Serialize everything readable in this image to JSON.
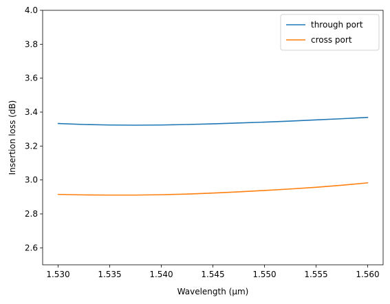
{
  "chart_data": {
    "type": "line",
    "xlabel": "Wavelength (μm)",
    "ylabel": "Insertion loss (dB)",
    "xlim": [
      1.5285,
      1.5615
    ],
    "ylim": [
      2.5,
      4.0
    ],
    "xticks": [
      1.53,
      1.535,
      1.54,
      1.545,
      1.55,
      1.555,
      1.56
    ],
    "xtick_labels": [
      "1.530",
      "1.535",
      "1.540",
      "1.545",
      "1.550",
      "1.555",
      "1.560"
    ],
    "yticks": [
      2.6,
      2.8,
      3.0,
      3.2,
      3.4,
      3.6,
      3.8,
      4.0
    ],
    "ytick_labels": [
      "2.6",
      "2.8",
      "3.0",
      "3.2",
      "3.4",
      "3.6",
      "3.8",
      "4.0"
    ],
    "grid": false,
    "legend_position": "top-right",
    "series": [
      {
        "name": "through port",
        "color": "#1f77b4",
        "x": [
          1.53,
          1.5325,
          1.535,
          1.5375,
          1.54,
          1.5425,
          1.545,
          1.5475,
          1.55,
          1.5525,
          1.555,
          1.5575,
          1.56
        ],
        "y": [
          3.333,
          3.327,
          3.324,
          3.323,
          3.324,
          3.327,
          3.331,
          3.336,
          3.341,
          3.347,
          3.354,
          3.361,
          3.369
        ]
      },
      {
        "name": "cross port",
        "color": "#ff7f0e",
        "x": [
          1.53,
          1.5325,
          1.535,
          1.5375,
          1.54,
          1.5425,
          1.545,
          1.5475,
          1.55,
          1.5525,
          1.555,
          1.5575,
          1.56
        ],
        "y": [
          2.915,
          2.912,
          2.911,
          2.911,
          2.913,
          2.917,
          2.923,
          2.93,
          2.938,
          2.947,
          2.957,
          2.969,
          2.983
        ]
      }
    ]
  }
}
